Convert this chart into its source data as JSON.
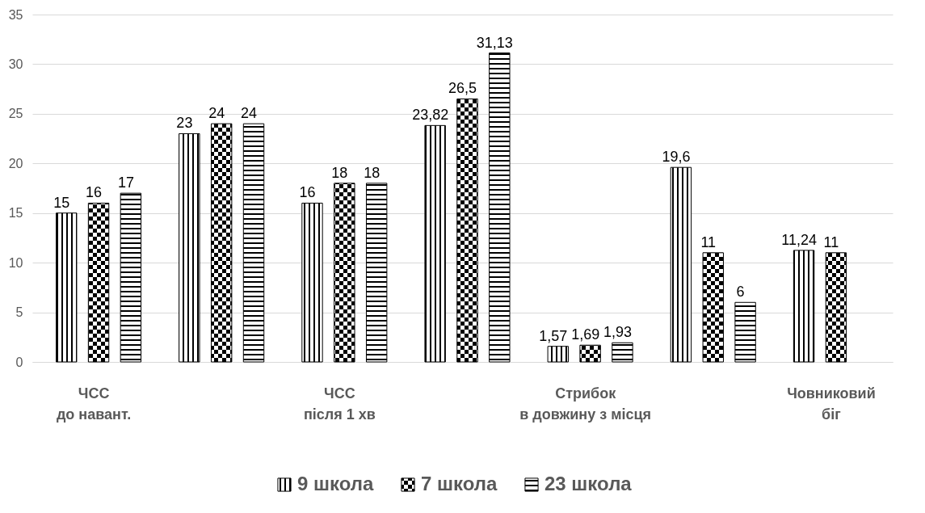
{
  "chart_data": {
    "type": "bar",
    "categories": [
      "ЧСС\nдо навант.",
      null,
      "ЧСС\nпісля 1 хв",
      null,
      "Стрибок\nв довжину з місця",
      null,
      "Човниковий\nбіг"
    ],
    "series": [
      {
        "name": "9 школа",
        "color": "#000000",
        "values": [
          15,
          23,
          16,
          23.82,
          1.57,
          19.6,
          11.24
        ],
        "value_labels": [
          "15",
          "23",
          "16",
          "23,82",
          "1,57",
          "19,6",
          "11,24"
        ]
      },
      {
        "name": "7 школа",
        "color": "#000000",
        "values": [
          16,
          24,
          18,
          26.5,
          1.69,
          11,
          11
        ],
        "value_labels": [
          "16",
          "24",
          "18",
          "26,5",
          "1,69",
          "11",
          "11"
        ]
      },
      {
        "name": "23 школа",
        "color": "#000000",
        "values": [
          17,
          24,
          18,
          31.13,
          1.93,
          6,
          null
        ],
        "value_labels": [
          "17",
          "24",
          "18",
          "31,13",
          "1,93",
          "6",
          null
        ]
      }
    ],
    "ylim": [
      0,
      35
    ],
    "yticks": [
      0,
      5,
      10,
      15,
      20,
      25,
      30,
      35
    ],
    "grid": "y",
    "legend": "bottom"
  }
}
